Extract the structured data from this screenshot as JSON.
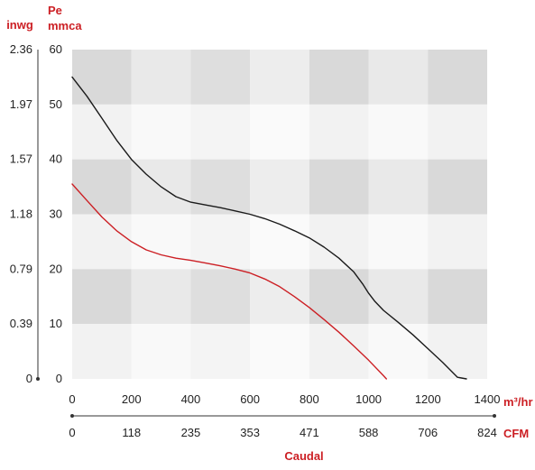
{
  "chart_data": {
    "type": "line",
    "left_axis_unit": "inwg",
    "pressure_label": "Pe",
    "pressure_unit": "mmca",
    "y_ticks": [
      0,
      10,
      20,
      30,
      40,
      50,
      60
    ],
    "y_ticks_inwg": [
      "0",
      "0.39",
      "0.79",
      "1.18",
      "1.57",
      "1.97",
      "2.36"
    ],
    "ylim": [
      0,
      60
    ],
    "x_ticks": [
      0,
      200,
      400,
      600,
      800,
      1000,
      1200,
      1400
    ],
    "x_unit": "m³/hr",
    "xlim": [
      0,
      1400
    ],
    "x_ticks_cfm": [
      "0",
      "118",
      "235",
      "353",
      "471",
      "588",
      "706",
      "824"
    ],
    "cfm_unit": "CFM",
    "xlabel": "Caudal",
    "background": "checkered grey grid",
    "series": [
      {
        "color": "#1a1a1a",
        "x": [
          0,
          50,
          100,
          150,
          200,
          250,
          300,
          350,
          400,
          450,
          500,
          550,
          600,
          650,
          700,
          750,
          800,
          850,
          900,
          950,
          980,
          1000,
          1020,
          1050,
          1100,
          1150,
          1200,
          1250,
          1300,
          1330
        ],
        "y": [
          55,
          51.5,
          47.5,
          43.5,
          40,
          37.3,
          35,
          33.2,
          32.2,
          31.7,
          31.2,
          30.6,
          30,
          29.2,
          28.2,
          27,
          25.7,
          24,
          22,
          19.5,
          17.3,
          15.6,
          14.2,
          12.5,
          10.3,
          8,
          5.5,
          3,
          0.3,
          0
        ]
      },
      {
        "color": "#cc1f24",
        "x": [
          0,
          50,
          100,
          150,
          200,
          250,
          300,
          350,
          400,
          450,
          500,
          550,
          600,
          650,
          700,
          750,
          800,
          850,
          900,
          950,
          1000,
          1050,
          1060
        ],
        "y": [
          35.5,
          32.5,
          29.5,
          27,
          25,
          23.5,
          22.6,
          22,
          21.6,
          21.1,
          20.6,
          20,
          19.3,
          18.2,
          16.8,
          15,
          13,
          10.8,
          8.5,
          6,
          3.4,
          0.6,
          0
        ]
      }
    ]
  },
  "colors": {
    "red": "#cc1f24",
    "black": "#1a1a1a",
    "grid_dark": "#d9d9d9",
    "grid_mid": "#e6e6e6",
    "grid_light": "#f2f2f2",
    "axis": "#333333"
  }
}
